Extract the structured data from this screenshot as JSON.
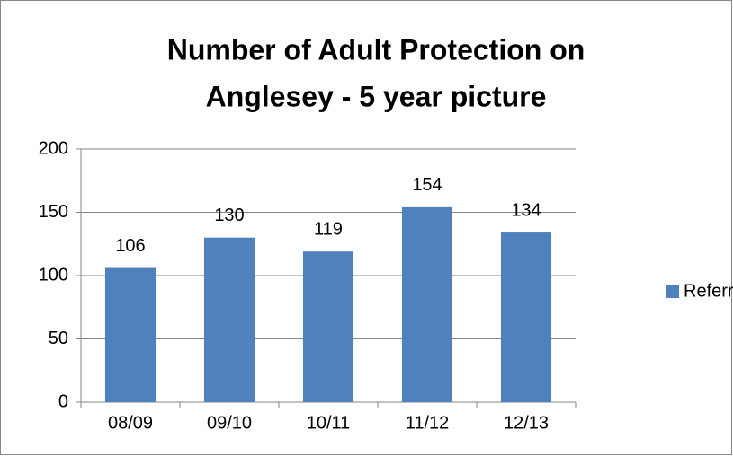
{
  "chart_data": {
    "type": "bar",
    "title": [
      "Number of Adult Protection on",
      "Anglesey - 5 year picture"
    ],
    "categories": [
      "08/09",
      "09/10",
      "10/11",
      "11/12",
      "12/13"
    ],
    "series": [
      {
        "name": "Referrals",
        "color": "#4f81bd",
        "values": [
          106,
          130,
          119,
          154,
          134
        ]
      }
    ],
    "ylim": [
      0,
      200
    ],
    "yticks": [
      0,
      50,
      100,
      150,
      200
    ],
    "grid": true,
    "legend": "right"
  }
}
